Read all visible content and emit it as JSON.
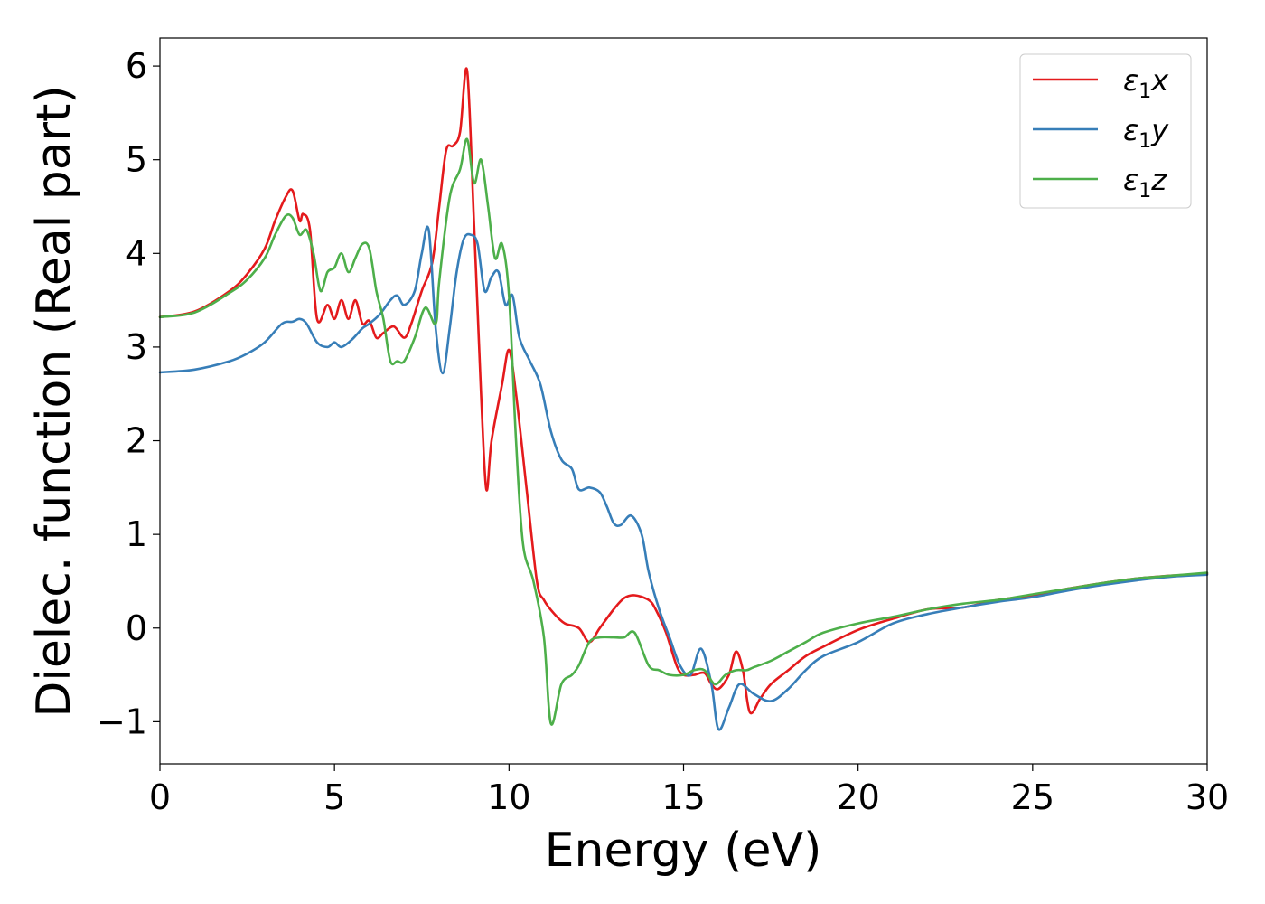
{
  "chart_data": {
    "type": "line",
    "xlabel": "Energy (eV)",
    "ylabel": "Dielec. function (Real part)",
    "xlim": [
      0,
      30
    ],
    "ylim": [
      -1.45,
      6.3
    ],
    "xticks": [
      0,
      5,
      10,
      15,
      20,
      25,
      30
    ],
    "yticks": [
      -1,
      0,
      1,
      2,
      3,
      4,
      5,
      6
    ],
    "xtick_labels": [
      "0",
      "5",
      "10",
      "15",
      "20",
      "25",
      "30"
    ],
    "ytick_labels": [
      "−1",
      "0",
      "1",
      "2",
      "3",
      "4",
      "5",
      "6"
    ],
    "grid": false,
    "legend_position": "top-right",
    "series": [
      {
        "name_base": "ε",
        "name_sub": "1",
        "name_axis": "x",
        "color": "#e41a1c",
        "x": [
          0,
          1,
          2,
          2.5,
          3,
          3.3,
          3.6,
          3.8,
          4.0,
          4.1,
          4.3,
          4.5,
          4.8,
          5.0,
          5.2,
          5.4,
          5.6,
          5.8,
          6.0,
          6.2,
          6.4,
          6.7,
          7.0,
          7.2,
          7.5,
          7.8,
          8.0,
          8.2,
          8.4,
          8.6,
          8.8,
          9.0,
          9.2,
          9.35,
          9.5,
          9.8,
          10.0,
          10.2,
          10.5,
          10.8,
          11.0,
          11.3,
          11.6,
          12.0,
          12.3,
          12.6,
          13.0,
          13.3,
          13.6,
          14.0,
          14.2,
          14.5,
          14.8,
          15.0,
          15.3,
          15.6,
          15.8,
          16.0,
          16.3,
          16.5,
          16.7,
          16.9,
          17.2,
          17.5,
          18.0,
          18.5,
          19.0,
          20.0,
          21.0,
          22.0,
          23.0,
          24.0,
          25.0,
          26.0,
          27.0,
          28.0,
          29.0,
          30.0
        ],
        "y": [
          3.32,
          3.38,
          3.6,
          3.78,
          4.05,
          4.35,
          4.6,
          4.67,
          4.35,
          4.42,
          4.25,
          3.3,
          3.45,
          3.3,
          3.5,
          3.3,
          3.5,
          3.25,
          3.28,
          3.1,
          3.15,
          3.22,
          3.1,
          3.25,
          3.6,
          3.9,
          4.5,
          5.1,
          5.15,
          5.3,
          5.95,
          4.3,
          2.5,
          1.48,
          2.0,
          2.6,
          2.97,
          2.5,
          1.5,
          0.5,
          0.3,
          0.15,
          0.05,
          0.0,
          -0.15,
          0.0,
          0.2,
          0.32,
          0.35,
          0.3,
          0.2,
          -0.05,
          -0.4,
          -0.5,
          -0.5,
          -0.48,
          -0.6,
          -0.65,
          -0.5,
          -0.25,
          -0.45,
          -0.9,
          -0.75,
          -0.6,
          -0.45,
          -0.3,
          -0.2,
          -0.02,
          0.1,
          0.2,
          0.22,
          0.3,
          0.35,
          0.42,
          0.48,
          0.53,
          0.56,
          0.58
        ]
      },
      {
        "name_base": "ε",
        "name_sub": "1",
        "name_axis": "y",
        "color": "#377eb8",
        "x": [
          0,
          1,
          2,
          2.5,
          3,
          3.5,
          3.8,
          4.0,
          4.2,
          4.5,
          4.8,
          5.0,
          5.2,
          5.5,
          5.8,
          6.0,
          6.3,
          6.6,
          6.8,
          7.0,
          7.3,
          7.5,
          7.7,
          7.9,
          8.1,
          8.3,
          8.5,
          8.7,
          8.9,
          9.1,
          9.3,
          9.5,
          9.7,
          9.9,
          10.1,
          10.3,
          10.6,
          10.9,
          11.2,
          11.5,
          11.8,
          12.0,
          12.3,
          12.6,
          12.8,
          13.0,
          13.2,
          13.5,
          13.8,
          14.0,
          14.3,
          14.6,
          14.9,
          15.2,
          15.5,
          15.8,
          16.0,
          16.3,
          16.6,
          17.0,
          17.5,
          18.0,
          18.5,
          19.0,
          20.0,
          21.0,
          22.0,
          23.0,
          24.0,
          25.0,
          26.0,
          27.0,
          28.0,
          29.0,
          30.0
        ],
        "y": [
          2.73,
          2.76,
          2.85,
          2.93,
          3.05,
          3.25,
          3.27,
          3.3,
          3.25,
          3.05,
          3.0,
          3.05,
          3.0,
          3.08,
          3.2,
          3.25,
          3.35,
          3.5,
          3.55,
          3.45,
          3.6,
          4.0,
          4.25,
          3.2,
          2.72,
          3.2,
          3.8,
          4.15,
          4.2,
          4.1,
          3.6,
          3.75,
          3.8,
          3.45,
          3.55,
          3.1,
          2.85,
          2.6,
          2.1,
          1.8,
          1.7,
          1.48,
          1.5,
          1.45,
          1.3,
          1.12,
          1.1,
          1.2,
          1.0,
          0.6,
          0.2,
          -0.1,
          -0.4,
          -0.5,
          -0.22,
          -0.6,
          -1.08,
          -0.85,
          -0.6,
          -0.7,
          -0.78,
          -0.65,
          -0.45,
          -0.3,
          -0.15,
          0.05,
          0.15,
          0.22,
          0.28,
          0.33,
          0.4,
          0.46,
          0.51,
          0.55,
          0.57
        ]
      },
      {
        "name_base": "ε",
        "name_sub": "1",
        "name_axis": "z",
        "color": "#4daf4a",
        "x": [
          0,
          1,
          2,
          2.5,
          3,
          3.3,
          3.6,
          3.8,
          4.0,
          4.2,
          4.4,
          4.6,
          4.8,
          5.0,
          5.2,
          5.4,
          5.6,
          5.8,
          6.0,
          6.2,
          6.4,
          6.6,
          6.8,
          7.0,
          7.3,
          7.6,
          7.9,
          8.0,
          8.3,
          8.6,
          8.8,
          9.0,
          9.2,
          9.4,
          9.6,
          9.8,
          10.0,
          10.2,
          10.4,
          10.7,
          11.0,
          11.2,
          11.5,
          11.8,
          12.0,
          12.3,
          12.6,
          13.0,
          13.3,
          13.6,
          14.0,
          14.3,
          14.6,
          15.0,
          15.3,
          15.6,
          15.9,
          16.2,
          16.5,
          16.8,
          17.0,
          17.5,
          18.0,
          18.5,
          19.0,
          20.0,
          21.0,
          22.0,
          23.0,
          24.0,
          25.0,
          26.0,
          27.0,
          28.0,
          29.0,
          30.0
        ],
        "y": [
          3.32,
          3.37,
          3.58,
          3.72,
          3.95,
          4.2,
          4.4,
          4.38,
          4.2,
          4.25,
          4.0,
          3.6,
          3.8,
          3.85,
          4.0,
          3.8,
          3.95,
          4.1,
          4.05,
          3.6,
          3.3,
          2.85,
          2.85,
          2.85,
          3.1,
          3.42,
          3.25,
          3.7,
          4.6,
          4.9,
          5.22,
          4.75,
          5.0,
          4.5,
          3.95,
          4.1,
          3.55,
          2.0,
          0.9,
          0.5,
          -0.1,
          -1.02,
          -0.6,
          -0.5,
          -0.4,
          -0.15,
          -0.1,
          -0.1,
          -0.1,
          -0.05,
          -0.4,
          -0.45,
          -0.5,
          -0.5,
          -0.45,
          -0.45,
          -0.6,
          -0.5,
          -0.45,
          -0.45,
          -0.42,
          -0.35,
          -0.25,
          -0.15,
          -0.05,
          0.05,
          0.12,
          0.2,
          0.26,
          0.3,
          0.36,
          0.42,
          0.48,
          0.53,
          0.56,
          0.59
        ]
      }
    ]
  }
}
